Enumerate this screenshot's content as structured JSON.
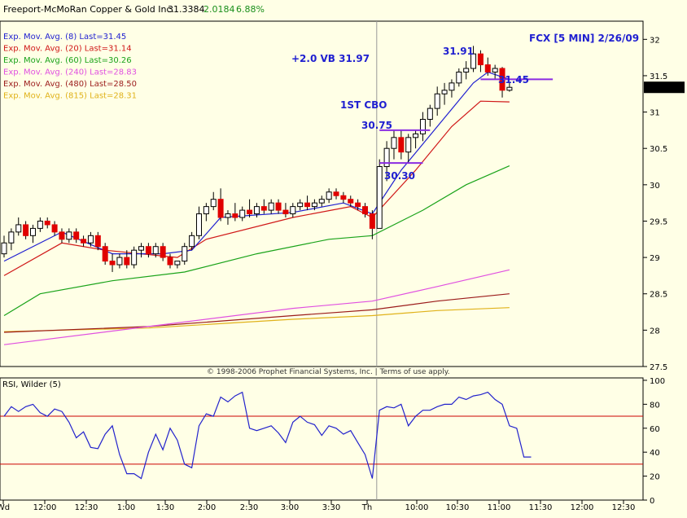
{
  "header": {
    "name": "Freeport-McMoRan Copper & Gold Inc.",
    "last": "31.3384",
    "change": "2.0184",
    "change_pct": "6.88%"
  },
  "copyright": "© 1998-2006 Prophet Financial Systems, Inc. | Terms of use apply.",
  "price_tag": "31.3384",
  "colors": {
    "background": "#ffffe6",
    "ema8": "#1f1fd0",
    "ema20": "#d01818",
    "ema60": "#1aa31a",
    "ema240": "#e050e0",
    "ema480": "#9b1b1b",
    "ema815": "#e0b21a",
    "candle_up": "#ffffff",
    "candle_down": "#e00000",
    "rsi_line": "#2222cc",
    "rsi_bands": "#cc0000",
    "level_lines": "#8a2be2"
  },
  "chart_data": [
    {
      "type": "candlestick",
      "title": "FCX [5 MIN] 2/26/09",
      "x_tick_labels": [
        "Wd",
        "12:00",
        "12:30",
        "1:00",
        "1:30",
        "2:00",
        "2:30",
        "3:00",
        "3:30",
        "Th",
        "10:00",
        "10:30",
        "11:00",
        "11:30",
        "12:00",
        "12:30"
      ],
      "y_ticks": [
        27.5,
        28,
        28.5,
        29,
        29.5,
        30,
        30.5,
        31,
        31.5,
        32
      ],
      "y_tick_labels": [
        "27.5",
        "28",
        "28.5",
        "29",
        "29.5",
        "30",
        "30.5",
        "31",
        "31.5",
        "32"
      ],
      "ylim": [
        27.5,
        32.25
      ],
      "legend": [
        {
          "label": "Exp. Mov. Avg. (8) Last=31.45",
          "color": "#1f1fd0"
        },
        {
          "label": "Exp. Mov. Avg. (20) Last=31.14",
          "color": "#d01818"
        },
        {
          "label": "Exp. Mov. Avg. (60) Last=30.26",
          "color": "#1aa31a"
        },
        {
          "label": "Exp. Mov. Avg. (240) Last=28.83",
          "color": "#e050e0"
        },
        {
          "label": "Exp. Mov. Avg. (480) Last=28.50",
          "color": "#9b1b1b"
        },
        {
          "label": "Exp. Mov. Avg. (815) Last=28.31",
          "color": "#e0b21a"
        }
      ],
      "candles": [
        [
          29.05,
          29.3,
          29.0,
          29.2
        ],
        [
          29.2,
          29.4,
          29.1,
          29.35
        ],
        [
          29.35,
          29.55,
          29.3,
          29.45
        ],
        [
          29.45,
          29.5,
          29.25,
          29.3
        ],
        [
          29.3,
          29.45,
          29.2,
          29.4
        ],
        [
          29.4,
          29.55,
          29.35,
          29.5
        ],
        [
          29.5,
          29.55,
          29.4,
          29.45
        ],
        [
          29.45,
          29.5,
          29.3,
          29.35
        ],
        [
          29.35,
          29.4,
          29.2,
          29.25
        ],
        [
          29.25,
          29.4,
          29.2,
          29.35
        ],
        [
          29.35,
          29.4,
          29.2,
          29.25
        ],
        [
          29.25,
          29.3,
          29.15,
          29.2
        ],
        [
          29.2,
          29.35,
          29.15,
          29.3
        ],
        [
          29.3,
          29.35,
          29.1,
          29.15
        ],
        [
          29.15,
          29.2,
          28.9,
          28.95
        ],
        [
          28.95,
          29.05,
          28.8,
          28.9
        ],
        [
          28.9,
          29.05,
          28.85,
          29.0
        ],
        [
          29.0,
          29.1,
          28.85,
          28.9
        ],
        [
          28.9,
          29.15,
          28.85,
          29.1
        ],
        [
          29.1,
          29.2,
          29.0,
          29.15
        ],
        [
          29.15,
          29.2,
          29.0,
          29.05
        ],
        [
          29.05,
          29.2,
          29.0,
          29.15
        ],
        [
          29.15,
          29.2,
          28.95,
          29.0
        ],
        [
          29.0,
          29.05,
          28.85,
          28.9
        ],
        [
          28.9,
          28.95,
          28.85,
          28.95
        ],
        [
          28.95,
          29.2,
          28.9,
          29.15
        ],
        [
          29.15,
          29.35,
          29.1,
          29.3
        ],
        [
          29.3,
          29.7,
          29.25,
          29.6
        ],
        [
          29.6,
          29.75,
          29.5,
          29.7
        ],
        [
          29.7,
          29.9,
          29.65,
          29.8
        ],
        [
          29.8,
          29.95,
          29.5,
          29.55
        ],
        [
          29.55,
          29.65,
          29.45,
          29.6
        ],
        [
          29.6,
          29.75,
          29.5,
          29.55
        ],
        [
          29.55,
          29.7,
          29.5,
          29.65
        ],
        [
          29.65,
          29.8,
          29.55,
          29.6
        ],
        [
          29.6,
          29.75,
          29.55,
          29.7
        ],
        [
          29.7,
          29.8,
          29.6,
          29.65
        ],
        [
          29.65,
          29.8,
          29.6,
          29.75
        ],
        [
          29.75,
          29.8,
          29.6,
          29.65
        ],
        [
          29.65,
          29.75,
          29.55,
          29.6
        ],
        [
          29.6,
          29.75,
          29.55,
          29.7
        ],
        [
          29.7,
          29.8,
          29.65,
          29.75
        ],
        [
          29.75,
          29.85,
          29.65,
          29.7
        ],
        [
          29.7,
          29.8,
          29.65,
          29.75
        ],
        [
          29.75,
          29.85,
          29.7,
          29.8
        ],
        [
          29.8,
          29.95,
          29.75,
          29.9
        ],
        [
          29.9,
          29.95,
          29.8,
          29.85
        ],
        [
          29.85,
          29.9,
          29.75,
          29.8
        ],
        [
          29.8,
          29.85,
          29.7,
          29.75
        ],
        [
          29.75,
          29.8,
          29.65,
          29.7
        ],
        [
          29.7,
          29.75,
          29.55,
          29.6
        ],
        [
          29.6,
          29.65,
          29.25,
          29.4
        ],
        [
          29.4,
          30.35,
          29.4,
          30.25
        ],
        [
          30.25,
          30.6,
          30.05,
          30.5
        ],
        [
          30.5,
          30.75,
          30.35,
          30.65
        ],
        [
          30.65,
          30.75,
          30.35,
          30.45
        ],
        [
          30.45,
          30.7,
          30.3,
          30.65
        ],
        [
          30.65,
          30.75,
          30.5,
          30.7
        ],
        [
          30.7,
          31.0,
          30.6,
          30.9
        ],
        [
          30.9,
          31.1,
          30.8,
          31.05
        ],
        [
          31.05,
          31.35,
          30.95,
          31.25
        ],
        [
          31.25,
          31.4,
          31.1,
          31.3
        ],
        [
          31.3,
          31.45,
          31.2,
          31.4
        ],
        [
          31.4,
          31.6,
          31.35,
          31.55
        ],
        [
          31.55,
          31.7,
          31.45,
          31.6
        ],
        [
          31.6,
          31.91,
          31.55,
          31.8
        ],
        [
          31.8,
          31.85,
          31.55,
          31.65
        ],
        [
          31.65,
          31.75,
          31.5,
          31.55
        ],
        [
          31.55,
          31.65,
          31.45,
          31.6
        ],
        [
          31.6,
          31.62,
          31.2,
          31.3
        ],
        [
          31.3,
          31.4,
          31.28,
          31.34
        ]
      ],
      "ema8": [
        [
          0,
          28.95
        ],
        [
          8,
          29.35
        ],
        [
          15,
          29.05
        ],
        [
          22,
          29.05
        ],
        [
          26,
          29.1
        ],
        [
          30,
          29.55
        ],
        [
          40,
          29.62
        ],
        [
          47,
          29.75
        ],
        [
          51,
          29.6
        ],
        [
          55,
          30.2
        ],
        [
          60,
          30.8
        ],
        [
          65,
          31.4
        ],
        [
          67,
          31.55
        ],
        [
          70,
          31.45
        ]
      ],
      "ema20": [
        [
          0,
          28.75
        ],
        [
          8,
          29.2
        ],
        [
          14,
          29.1
        ],
        [
          24,
          29.0
        ],
        [
          28,
          29.25
        ],
        [
          40,
          29.55
        ],
        [
          48,
          29.7
        ],
        [
          51,
          29.55
        ],
        [
          57,
          30.2
        ],
        [
          62,
          30.8
        ],
        [
          66,
          31.15
        ],
        [
          70,
          31.14
        ]
      ],
      "ema60": [
        [
          0,
          28.2
        ],
        [
          5,
          28.5
        ],
        [
          15,
          28.68
        ],
        [
          25,
          28.8
        ],
        [
          35,
          29.05
        ],
        [
          45,
          29.25
        ],
        [
          51,
          29.3
        ],
        [
          58,
          29.65
        ],
        [
          64,
          30.0
        ],
        [
          70,
          30.26
        ]
      ],
      "ema240": [
        [
          0,
          27.8
        ],
        [
          20,
          28.05
        ],
        [
          40,
          28.3
        ],
        [
          51,
          28.4
        ],
        [
          60,
          28.6
        ],
        [
          70,
          28.83
        ]
      ],
      "ema480": [
        [
          0,
          27.97
        ],
        [
          20,
          28.05
        ],
        [
          40,
          28.2
        ],
        [
          51,
          28.28
        ],
        [
          60,
          28.4
        ],
        [
          70,
          28.5
        ]
      ],
      "ema815": [
        [
          0,
          27.98
        ],
        [
          20,
          28.03
        ],
        [
          40,
          28.15
        ],
        [
          51,
          28.2
        ],
        [
          60,
          28.27
        ],
        [
          70,
          28.31
        ]
      ],
      "levels": [
        {
          "value": 30.75,
          "from": 52,
          "to": 59,
          "label": "30.75"
        },
        {
          "value": 30.3,
          "from": 52,
          "to": 58,
          "label": "30.30"
        },
        {
          "value": 31.45,
          "from": 66,
          "to": 76,
          "label": "31.45"
        }
      ],
      "annotations": [
        {
          "text": "+2.0 VB 31.97"
        },
        {
          "text": "1ST CBO"
        },
        {
          "text": "31.91"
        }
      ]
    },
    {
      "type": "line",
      "title": "RSI, Wilder (5)",
      "y_ticks": [
        0,
        20,
        40,
        60,
        80,
        100
      ],
      "y_tick_labels": [
        "0",
        "20",
        "40",
        "60",
        "80",
        "100"
      ],
      "ylim": [
        0,
        102
      ],
      "bands": [
        30,
        70
      ],
      "values": [
        70,
        78,
        74,
        78,
        80,
        73,
        70,
        76,
        74,
        65,
        52,
        57,
        44,
        43,
        55,
        62,
        38,
        22,
        22,
        18,
        40,
        55,
        42,
        60,
        50,
        30,
        27,
        62,
        72,
        70,
        86,
        82,
        87,
        90,
        60,
        58,
        60,
        62,
        56,
        48,
        65,
        70,
        65,
        63,
        54,
        62,
        60,
        55,
        58,
        48,
        38,
        18,
        75,
        78,
        77,
        80,
        62,
        70,
        75,
        75,
        78,
        80,
        80,
        86,
        84,
        87,
        88,
        90,
        84,
        80,
        62,
        60,
        36,
        36
      ]
    }
  ]
}
